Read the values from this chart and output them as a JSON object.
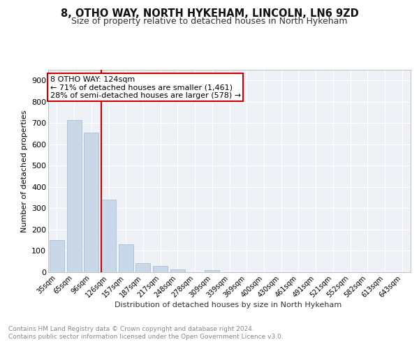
{
  "title1": "8, OTHO WAY, NORTH HYKEHAM, LINCOLN, LN6 9ZD",
  "title2": "Size of property relative to detached houses in North Hykeham",
  "xlabel": "Distribution of detached houses by size in North Hykeham",
  "ylabel": "Number of detached properties",
  "categories": [
    "35sqm",
    "65sqm",
    "96sqm",
    "126sqm",
    "157sqm",
    "187sqm",
    "217sqm",
    "248sqm",
    "278sqm",
    "309sqm",
    "339sqm",
    "369sqm",
    "400sqm",
    "430sqm",
    "461sqm",
    "491sqm",
    "521sqm",
    "552sqm",
    "582sqm",
    "613sqm",
    "643sqm"
  ],
  "values": [
    150,
    715,
    655,
    340,
    130,
    42,
    30,
    14,
    0,
    10,
    0,
    0,
    0,
    0,
    0,
    0,
    0,
    0,
    0,
    0,
    0
  ],
  "bar_color": "#c8d8e8",
  "bar_edge_color": "#a0b8cc",
  "property_line_color": "#cc0000",
  "annotation_text": "8 OTHO WAY: 124sqm\n← 71% of detached houses are smaller (1,461)\n28% of semi-detached houses are larger (578) →",
  "annotation_box_color": "#ffffff",
  "annotation_box_edge_color": "#cc0000",
  "ylim": [
    0,
    950
  ],
  "yticks": [
    0,
    100,
    200,
    300,
    400,
    500,
    600,
    700,
    800,
    900
  ],
  "background_color": "#eef2f6",
  "grid_color": "#ffffff",
  "footer_text": "Contains HM Land Registry data © Crown copyright and database right 2024.\nContains public sector information licensed under the Open Government Licence v3.0.",
  "title1_fontsize": 10.5,
  "title2_fontsize": 9,
  "annotation_fontsize": 8,
  "footer_fontsize": 6.5,
  "xlabel_fontsize": 8,
  "ylabel_fontsize": 8
}
